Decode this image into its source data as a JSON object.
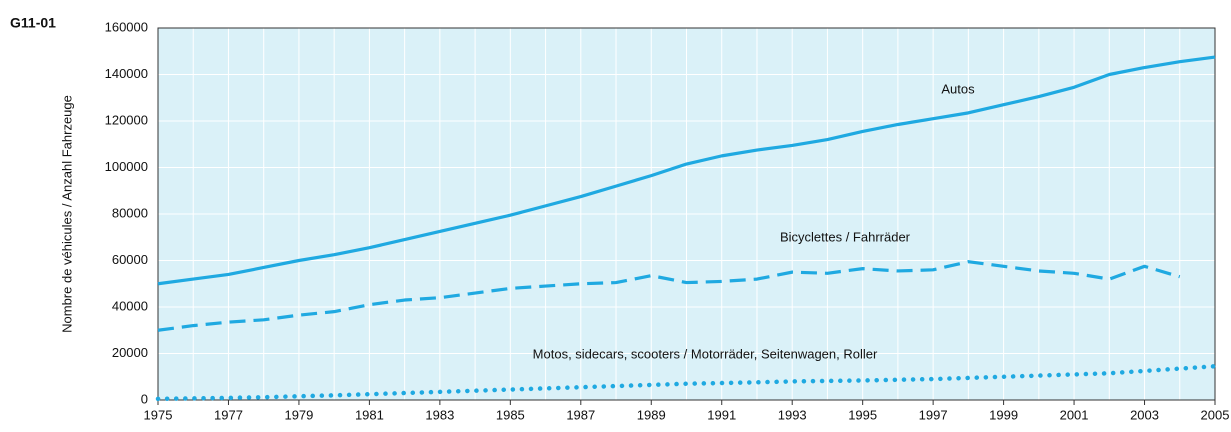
{
  "chart_data": {
    "type": "line",
    "title": "G11-01",
    "ylabel": "Nombre de véhicules / Anzahl Fahrzeuge",
    "x": [
      1975,
      1976,
      1977,
      1978,
      1979,
      1980,
      1981,
      1982,
      1983,
      1984,
      1985,
      1986,
      1987,
      1988,
      1989,
      1990,
      1991,
      1992,
      1993,
      1994,
      1995,
      1996,
      1997,
      1998,
      1999,
      2000,
      2001,
      2002,
      2003,
      2004,
      2005
    ],
    "xlim": [
      1975,
      2005
    ],
    "xticks": [
      1975,
      1977,
      1979,
      1981,
      1983,
      1985,
      1987,
      1989,
      1991,
      1993,
      1995,
      1997,
      1999,
      2001,
      2003,
      2005
    ],
    "ylim": [
      0,
      160000
    ],
    "yticks": [
      0,
      20000,
      40000,
      60000,
      80000,
      100000,
      120000,
      140000,
      160000
    ],
    "grid": true,
    "series": [
      {
        "name": "Autos",
        "color": "#1fa9e1",
        "style": "solid",
        "values": [
          50000,
          52000,
          54000,
          57000,
          60000,
          62500,
          65500,
          69000,
          72500,
          76000,
          79500,
          83500,
          87500,
          92000,
          96500,
          101500,
          105000,
          107500,
          109500,
          112000,
          115500,
          118500,
          121000,
          123500,
          127000,
          130500,
          134500,
          140000,
          143000,
          145500,
          147500
        ]
      },
      {
        "name": "Bicyclettes / Fahrräder",
        "color": "#1fa9e1",
        "style": "dashed",
        "values": [
          30000,
          32000,
          33500,
          34500,
          36500,
          38000,
          41000,
          43000,
          44000,
          46000,
          48000,
          49000,
          50000,
          50500,
          53500,
          50500,
          51000,
          52000,
          55000,
          54500,
          56500,
          55500,
          56000,
          59500,
          57500,
          55500,
          54500,
          52000,
          57500,
          53000,
          null
        ]
      },
      {
        "name": "Motos, sidecars, scooters / Motorräder, Seitenwagen, Roller",
        "color": "#1fa9e1",
        "style": "dotted",
        "values": [
          500,
          700,
          900,
          1200,
          1600,
          2000,
          2500,
          3000,
          3500,
          4000,
          4500,
          5000,
          5500,
          6000,
          6500,
          7000,
          7300,
          7600,
          8000,
          8200,
          8400,
          8700,
          9000,
          9500,
          10000,
          10500,
          11000,
          11500,
          12500,
          13500,
          14500
        ]
      }
    ]
  }
}
